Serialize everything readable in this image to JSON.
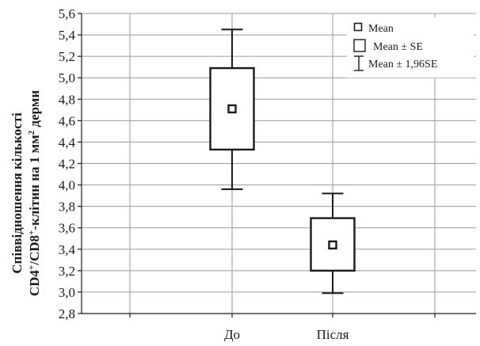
{
  "chart_data": {
    "type": "box",
    "ylabel_line1": "Співвідношення кількості",
    "ylabel_line2_prefix": "CD4",
    "ylabel_line2_sup1": "+",
    "ylabel_line2_mid": "/CD8",
    "ylabel_line2_sup2": "+",
    "ylabel_line2_mid2": "-клітин на 1 мм",
    "ylabel_line2_sup3": "2",
    "ylabel_line2_suffix": " дерми",
    "ylim": [
      2.8,
      5.6
    ],
    "ytick_values": [
      2.8,
      3.0,
      3.2,
      3.4,
      3.6,
      3.8,
      4.0,
      4.2,
      4.4,
      4.6,
      4.8,
      5.0,
      5.2,
      5.4,
      5.6
    ],
    "ytick_labels": [
      "2,8",
      "3,0",
      "3,2",
      "3,4",
      "3,6",
      "3,8",
      "4,0",
      "4,2",
      "4,4",
      "4,6",
      "4,8",
      "5,0",
      "5,2",
      "5,4",
      "5,6"
    ],
    "categories": [
      "До",
      "Після"
    ],
    "groups": [
      {
        "category": "До",
        "mean": 4.71,
        "se_low": 4.33,
        "se_high": 5.09,
        "ci_low": 3.96,
        "ci_high": 5.45
      },
      {
        "category": "Після",
        "mean": 3.44,
        "se_low": 3.2,
        "se_high": 3.69,
        "ci_low": 2.99,
        "ci_high": 3.92
      }
    ],
    "legend": {
      "position": "top-right",
      "entries": [
        {
          "marker": "small-square",
          "label": "Mean"
        },
        {
          "marker": "large-square",
          "label": "Mean ± SE"
        },
        {
          "marker": "whisker",
          "label": "Mean ± 1,96SE"
        }
      ]
    },
    "grid": true
  }
}
